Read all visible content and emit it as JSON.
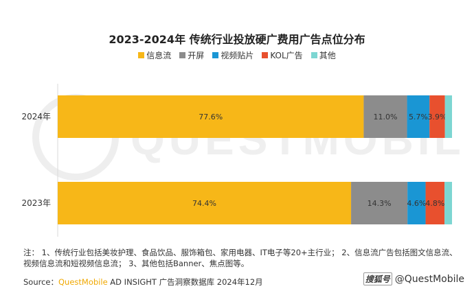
{
  "chart_data": {
    "type": "bar",
    "orientation": "horizontal",
    "stacked": true,
    "title": "2023-2024年 传统行业投放硬广费用广告点位分布",
    "categories": [
      "2024年",
      "2023年"
    ],
    "series": [
      {
        "name": "信息流",
        "color": "#f7b718",
        "values": [
          77.6,
          74.4
        ],
        "labels": [
          "77.6%",
          "74.4%"
        ]
      },
      {
        "name": "开屏",
        "color": "#8c8c8c",
        "values": [
          11.0,
          14.3
        ],
        "labels": [
          "11.0%",
          "14.3%"
        ]
      },
      {
        "name": "视频贴片",
        "color": "#1a96d4",
        "values": [
          5.7,
          4.6
        ],
        "labels": [
          "5.7%",
          "4.6%"
        ]
      },
      {
        "name": "KOL广告",
        "color": "#e8502e",
        "values": [
          3.9,
          4.8
        ],
        "labels": [
          "3.9%",
          "4.8%"
        ]
      },
      {
        "name": "其他",
        "color": "#7dd6d2",
        "values": [
          1.8,
          1.9
        ],
        "labels": [
          "",
          ""
        ]
      }
    ],
    "xlim": [
      0,
      100
    ],
    "grid": false,
    "legend_position": "top"
  },
  "watermark": "QUESTMOBILE",
  "note": "注： 1、传统行业包括美妆护理、食品饮品、服饰箱包、家用电器、IT电子等20+主行业； 2、信息流广告包括图文信息流、视频信息流和短视频信息流； 3、其他包括Banner、焦点图等。",
  "source": {
    "prefix": "Source：",
    "brand": "QuestMobile",
    "rest": " AD INSIGHT 广告洞察数据库 2024年12月"
  },
  "credit": {
    "logo": "搜狐号",
    "handle": "@QuestMobile"
  }
}
